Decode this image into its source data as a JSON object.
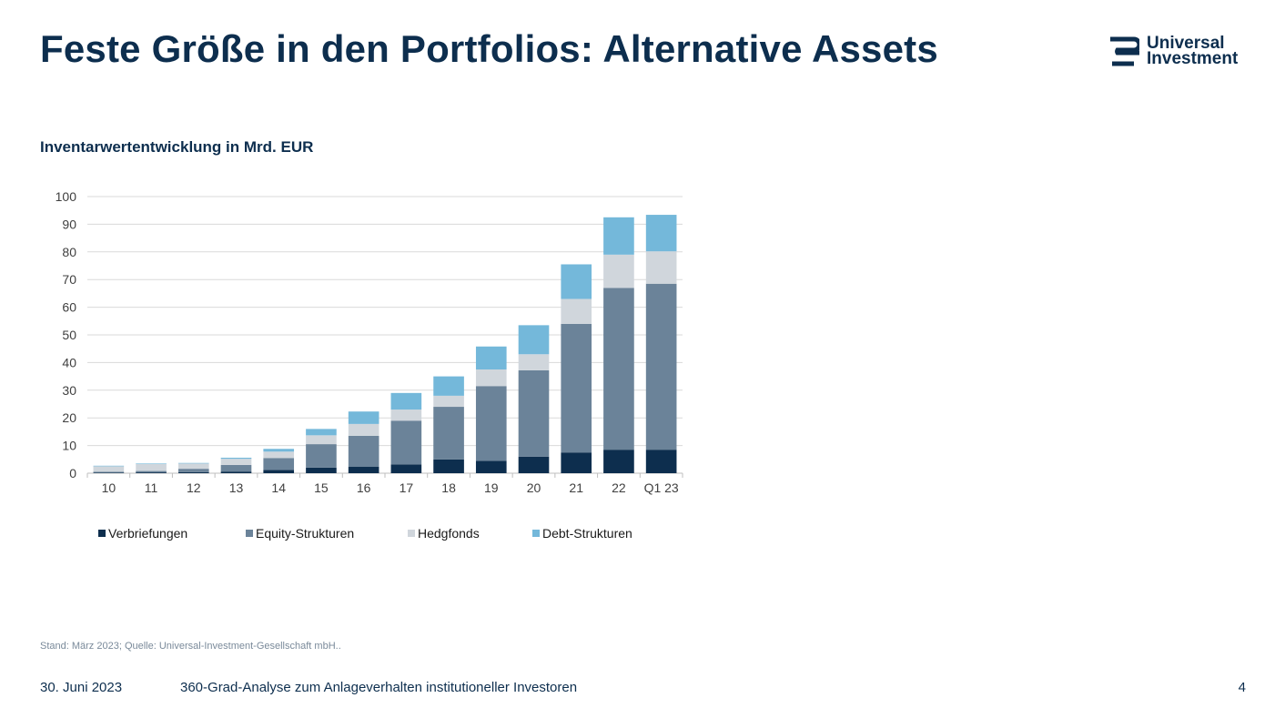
{
  "slide": {
    "title": "Feste Größe in den Portfolios: Alternative Assets",
    "logo_line1": "Universal",
    "logo_line2": "Investment",
    "source": "Stand: März 2023; Quelle: Universal-Investment-Gesellschaft mbH..",
    "footer_date": "30. Juni 2023",
    "footer_text": "360-Grad-Analyse zum Anlageverhalten institutioneller Investoren",
    "page_number": "4"
  },
  "colors": {
    "brand": "#0d2e4e",
    "verbriefungen": "#0d2e4e",
    "equity": "#6b8399",
    "hedgefonds": "#d0d6dc",
    "debt": "#74b8da"
  },
  "chart_data": {
    "type": "bar",
    "stacked": true,
    "title": "Inventarwertentwicklung in Mrd. EUR",
    "xlabel": "",
    "ylabel": "",
    "ylim": [
      0,
      100
    ],
    "yticks": [
      0,
      10,
      20,
      30,
      40,
      50,
      60,
      70,
      80,
      90,
      100
    ],
    "grid": true,
    "legend_position": "bottom",
    "categories": [
      "10",
      "11",
      "12",
      "13",
      "14",
      "15",
      "16",
      "17",
      "18",
      "19",
      "20",
      "21",
      "22",
      "Q1 23"
    ],
    "series": [
      {
        "name": "Verbriefungen",
        "values": [
          0.2,
          0.3,
          0.4,
          0.6,
          1.2,
          2.0,
          2.3,
          3.2,
          5.0,
          4.5,
          6.0,
          7.5,
          8.5,
          8.5
        ]
      },
      {
        "name": "Equity-Strukturen",
        "values": [
          0.3,
          0.5,
          1.2,
          2.4,
          4.3,
          8.5,
          11.2,
          15.8,
          19.0,
          27.0,
          31.2,
          46.5,
          58.5,
          60.0
        ]
      },
      {
        "name": "Hedgfonds",
        "values": [
          2.0,
          2.5,
          1.9,
          2.2,
          2.3,
          3.2,
          4.3,
          4.0,
          4.0,
          6.0,
          5.8,
          9.0,
          12.0,
          11.7
        ]
      },
      {
        "name": "Debt-Strukturen",
        "values": [
          0.2,
          0.2,
          0.2,
          0.4,
          1.0,
          2.3,
          4.5,
          6.0,
          7.0,
          8.3,
          10.5,
          12.5,
          13.5,
          13.2
        ]
      }
    ]
  }
}
